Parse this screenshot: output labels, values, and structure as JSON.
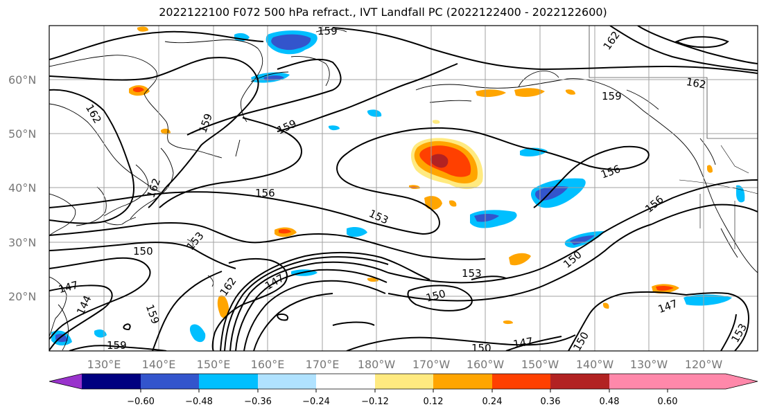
{
  "title": "2022122100 F072 500 hPa refract., IVT Landfall PC (2022122400 - 2022122600)",
  "axes": {
    "lon_labels": [
      "130°E",
      "140°E",
      "150°E",
      "160°E",
      "170°E",
      "180°W",
      "170°W",
      "160°W",
      "150°W",
      "140°W",
      "130°W",
      "120°W"
    ],
    "lat_labels": [
      "60°N",
      "50°N",
      "40°N",
      "30°N",
      "20°N"
    ],
    "grid": true
  },
  "contour_labels": [
    "159",
    "162",
    "162",
    "159",
    "159",
    "162",
    "156",
    "159",
    "162",
    "153",
    "150",
    "147",
    "144",
    "162",
    "153",
    "147",
    "159",
    "153",
    "150",
    "156",
    "156",
    "150",
    "147",
    "150",
    "147",
    "150",
    "153",
    "159"
  ],
  "colorbar": {
    "tick_labels": [
      "−0.60",
      "−0.48",
      "−0.36",
      "−0.24",
      "−0.12",
      "0.12",
      "0.24",
      "0.36",
      "0.48",
      "0.60"
    ],
    "colors": [
      "#9933cc",
      "#000080",
      "#3355cc",
      "#00bfff",
      "#b0e2ff",
      "#ffffff",
      "#ffea80",
      "#ffa500",
      "#ff4000",
      "#b22222",
      "#ff88aa"
    ]
  }
}
